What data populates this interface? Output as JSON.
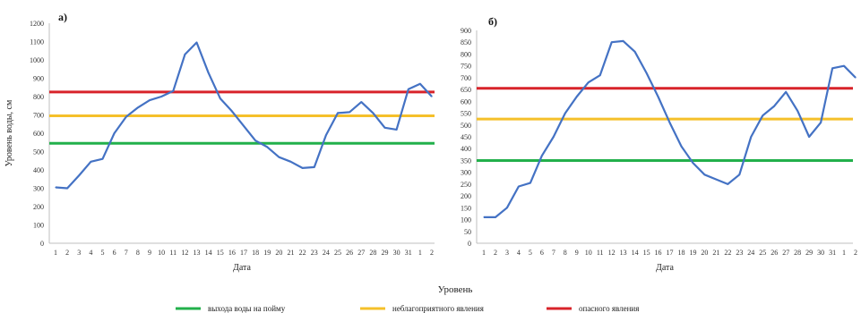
{
  "legend": {
    "title": "Уровень",
    "items": [
      {
        "label": "выхода воды на пойму",
        "color": "#22b04b"
      },
      {
        "label": "неблагоприятного явления",
        "color": "#f5c02a"
      },
      {
        "label": "опасного явления",
        "color": "#d8232a"
      }
    ]
  },
  "chart_data": [
    {
      "type": "line",
      "panel": "а)",
      "xlabel": "Дата",
      "ylabel": "Уровень воды, см",
      "ylim": [
        0,
        1200
      ],
      "yticks": [
        0,
        100,
        200,
        300,
        400,
        500,
        600,
        700,
        800,
        900,
        1000,
        1100,
        1200
      ],
      "categories": [
        "1",
        "2",
        "3",
        "4",
        "5",
        "6",
        "7",
        "8",
        "9",
        "10",
        "11",
        "12",
        "13",
        "14",
        "15",
        "16",
        "17",
        "18",
        "19",
        "20",
        "21",
        "22",
        "23",
        "24",
        "25",
        "26",
        "27",
        "28",
        "29",
        "30",
        "31",
        "1",
        "2"
      ],
      "series": [
        {
          "values": [
            305,
            300,
            370,
            445,
            460,
            600,
            690,
            740,
            780,
            800,
            830,
            1030,
            1095,
            930,
            790,
            720,
            640,
            560,
            525,
            470,
            445,
            410,
            415,
            590,
            710,
            715,
            770,
            710,
            630,
            620,
            840,
            870,
            800
          ],
          "color": "#4472c4"
        }
      ],
      "hlines": [
        {
          "value": 545,
          "color": "#22b04b"
        },
        {
          "value": 695,
          "color": "#f5c02a"
        },
        {
          "value": 825,
          "color": "#d8232a"
        }
      ]
    },
    {
      "type": "line",
      "panel": "б)",
      "xlabel": "Дата",
      "ylabel": "",
      "ylim": [
        0,
        900
      ],
      "yticks": [
        0,
        50,
        100,
        150,
        200,
        250,
        300,
        350,
        400,
        450,
        500,
        550,
        600,
        650,
        700,
        750,
        800,
        850,
        900
      ],
      "categories": [
        "1",
        "2",
        "3",
        "4",
        "5",
        "6",
        "7",
        "8",
        "9",
        "10",
        "11",
        "12",
        "13",
        "14",
        "15",
        "16",
        "17",
        "18",
        "19",
        "20",
        "21",
        "22",
        "23",
        "24",
        "25",
        "26",
        "27",
        "28",
        "29",
        "30",
        "31",
        "1",
        "2"
      ],
      "series": [
        {
          "values": [
            110,
            110,
            150,
            240,
            255,
            370,
            450,
            550,
            620,
            680,
            710,
            850,
            855,
            810,
            720,
            620,
            510,
            410,
            340,
            290,
            270,
            250,
            290,
            450,
            540,
            580,
            640,
            560,
            450,
            510,
            740,
            750,
            700
          ],
          "color": "#4472c4"
        }
      ],
      "hlines": [
        {
          "value": 350,
          "color": "#22b04b"
        },
        {
          "value": 525,
          "color": "#f5c02a"
        },
        {
          "value": 655,
          "color": "#d8232a"
        }
      ]
    }
  ]
}
